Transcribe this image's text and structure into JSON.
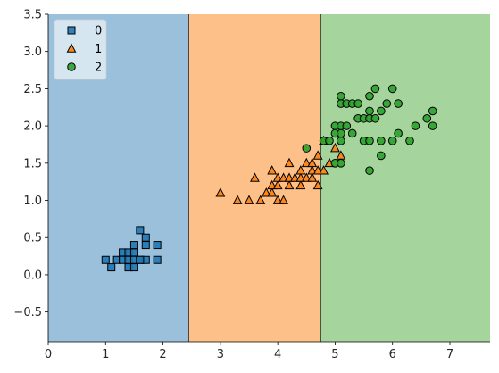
{
  "chart_data": {
    "type": "scatter",
    "title": "",
    "xlabel": "",
    "ylabel": "",
    "xlim": [
      0,
      7.7
    ],
    "ylim": [
      -0.9,
      3.5
    ],
    "xticks": [
      0,
      1,
      2,
      3,
      4,
      5,
      6,
      7
    ],
    "yticks": [
      -0.5,
      0.0,
      0.5,
      1.0,
      1.5,
      2.0,
      2.5,
      3.0,
      3.5
    ],
    "grid": false,
    "legend_position": "top-left",
    "decision_regions": [
      {
        "class": "0",
        "x_from": 0.0,
        "x_to": 2.45,
        "color": "#9ac0dc"
      },
      {
        "class": "1",
        "x_from": 2.45,
        "x_to": 4.75,
        "color": "#fec089"
      },
      {
        "class": "2",
        "x_from": 4.75,
        "x_to": 7.7,
        "color": "#a6d49d"
      }
    ],
    "series": [
      {
        "name": "0",
        "marker": "square",
        "color": "#1f77b4",
        "points": [
          [
            1.0,
            0.2
          ],
          [
            1.1,
            0.1
          ],
          [
            1.2,
            0.2
          ],
          [
            1.3,
            0.2
          ],
          [
            1.3,
            0.3
          ],
          [
            1.4,
            0.1
          ],
          [
            1.4,
            0.2
          ],
          [
            1.4,
            0.3
          ],
          [
            1.5,
            0.1
          ],
          [
            1.5,
            0.2
          ],
          [
            1.5,
            0.3
          ],
          [
            1.5,
            0.4
          ],
          [
            1.6,
            0.2
          ],
          [
            1.6,
            0.6
          ],
          [
            1.7,
            0.2
          ],
          [
            1.7,
            0.4
          ],
          [
            1.7,
            0.5
          ],
          [
            1.9,
            0.2
          ],
          [
            1.9,
            0.4
          ],
          [
            1.6,
            0.2
          ]
        ]
      },
      {
        "name": "1",
        "marker": "triangle",
        "color": "#ff7f0e",
        "points": [
          [
            3.0,
            1.1
          ],
          [
            3.3,
            1.0
          ],
          [
            3.5,
            1.0
          ],
          [
            3.6,
            1.3
          ],
          [
            3.7,
            1.0
          ],
          [
            3.8,
            1.1
          ],
          [
            3.9,
            1.1
          ],
          [
            3.9,
            1.2
          ],
          [
            3.9,
            1.4
          ],
          [
            4.0,
            1.0
          ],
          [
            4.0,
            1.2
          ],
          [
            4.0,
            1.3
          ],
          [
            4.1,
            1.0
          ],
          [
            4.1,
            1.3
          ],
          [
            4.2,
            1.2
          ],
          [
            4.2,
            1.3
          ],
          [
            4.2,
            1.5
          ],
          [
            4.3,
            1.3
          ],
          [
            4.4,
            1.2
          ],
          [
            4.4,
            1.3
          ],
          [
            4.4,
            1.4
          ],
          [
            4.5,
            1.3
          ],
          [
            4.5,
            1.5
          ],
          [
            4.6,
            1.3
          ],
          [
            4.6,
            1.4
          ],
          [
            4.6,
            1.5
          ],
          [
            4.7,
            1.2
          ],
          [
            4.7,
            1.4
          ],
          [
            4.7,
            1.6
          ],
          [
            4.8,
            1.4
          ],
          [
            4.8,
            1.8
          ],
          [
            4.9,
            1.5
          ],
          [
            5.0,
            1.7
          ],
          [
            5.1,
            1.6
          ]
        ]
      },
      {
        "name": "2",
        "marker": "circle",
        "color": "#2ca02c",
        "points": [
          [
            4.5,
            1.7
          ],
          [
            4.8,
            1.8
          ],
          [
            4.9,
            1.8
          ],
          [
            5.0,
            1.5
          ],
          [
            5.0,
            2.0
          ],
          [
            5.0,
            1.9
          ],
          [
            5.1,
            1.5
          ],
          [
            5.1,
            1.8
          ],
          [
            5.1,
            1.9
          ],
          [
            5.1,
            2.0
          ],
          [
            5.1,
            2.3
          ],
          [
            5.1,
            2.4
          ],
          [
            5.2,
            2.0
          ],
          [
            5.2,
            2.3
          ],
          [
            5.3,
            1.9
          ],
          [
            5.3,
            2.3
          ],
          [
            5.4,
            2.1
          ],
          [
            5.4,
            2.3
          ],
          [
            5.5,
            1.8
          ],
          [
            5.5,
            2.1
          ],
          [
            5.6,
            1.4
          ],
          [
            5.6,
            1.8
          ],
          [
            5.6,
            2.1
          ],
          [
            5.6,
            2.2
          ],
          [
            5.6,
            2.4
          ],
          [
            5.7,
            2.1
          ],
          [
            5.7,
            2.5
          ],
          [
            5.8,
            1.6
          ],
          [
            5.8,
            1.8
          ],
          [
            5.8,
            2.2
          ],
          [
            5.9,
            2.3
          ],
          [
            6.0,
            1.8
          ],
          [
            6.0,
            2.5
          ],
          [
            6.1,
            1.9
          ],
          [
            6.1,
            2.3
          ],
          [
            6.3,
            1.8
          ],
          [
            6.4,
            2.0
          ],
          [
            6.6,
            2.1
          ],
          [
            6.7,
            2.0
          ],
          [
            6.7,
            2.2
          ]
        ]
      }
    ]
  }
}
